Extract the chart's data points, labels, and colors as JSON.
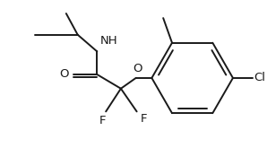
{
  "bg_color": "#ffffff",
  "line_color": "#1a1a1a",
  "line_width": 1.4,
  "font_size": 9.5,
  "figsize": [
    2.98,
    1.65
  ],
  "dpi": 100,
  "xlim": [
    0,
    298
  ],
  "ylim": [
    0,
    165
  ]
}
